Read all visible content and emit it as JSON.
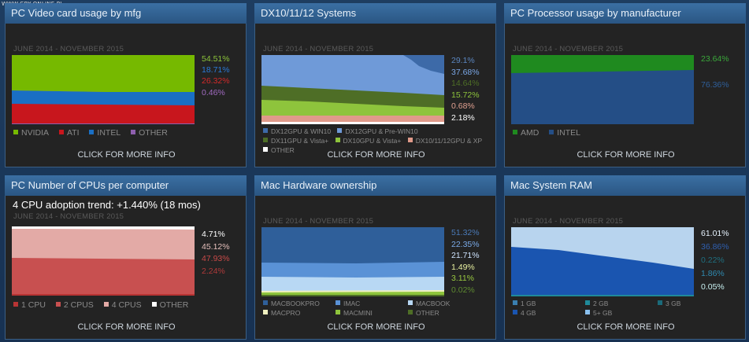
{
  "watermark": "WWW.GRY-ONLINE.PL",
  "panels": [
    {
      "title": "PC Video card usage by mfg",
      "date": "JUNE 2014 - NOVEMBER 2015",
      "cta": "CLICK FOR MORE INFO",
      "values": [
        {
          "text": "54.51%",
          "color": "#8cc43a"
        },
        {
          "text": "18.71%",
          "color": "#2b7ad6"
        },
        {
          "text": "26.32%",
          "color": "#d22a2a"
        },
        {
          "text": "0.46%",
          "color": "#a06ac0"
        }
      ],
      "legend": [
        {
          "label": "NVIDIA",
          "color": "#76b900"
        },
        {
          "label": "ATI",
          "color": "#c8161d"
        },
        {
          "label": "INTEL",
          "color": "#1a6fc4"
        },
        {
          "label": "OTHER",
          "color": "#8e5fae"
        }
      ]
    },
    {
      "title": "DX10/11/12 Systems",
      "date": "JUNE 2014 - NOVEMBER 2015",
      "cta": "CLICK FOR MORE INFO",
      "values": [
        {
          "text": "29.1%",
          "color": "#5b86c0"
        },
        {
          "text": "37.68%",
          "color": "#7aa6e6"
        },
        {
          "text": "14.64%",
          "color": "#4e6e26"
        },
        {
          "text": "15.72%",
          "color": "#8ec43c"
        },
        {
          "text": "0.68%",
          "color": "#e0a090"
        },
        {
          "text": "2.18%",
          "color": "#ffffff"
        }
      ],
      "legend": [
        {
          "label": "DX12GPU & WIN10",
          "color": "#3d6aa8"
        },
        {
          "label": "DX12GPU & Pre-WIN10",
          "color": "#6f9ad8"
        },
        {
          "label": "DX11GPU & Vista+",
          "color": "#4e6e26"
        },
        {
          "label": "DX10GPU & Vista+",
          "color": "#8ec43c"
        },
        {
          "label": "DX10/11/12GPU & XP",
          "color": "#e09a8a"
        },
        {
          "label": "OTHER",
          "color": "#ffffff"
        }
      ]
    },
    {
      "title": "PC Processor usage by manufacturer",
      "date": "JUNE 2014 - NOVEMBER 2015",
      "cta": "CLICK FOR MORE INFO",
      "values": [
        {
          "text": "23.64%",
          "color": "#3aa83a"
        },
        {
          "text": "76.36%",
          "color": "#2f5f9a"
        }
      ],
      "legend": [
        {
          "label": "AMD",
          "color": "#1f8a1f"
        },
        {
          "label": "INTEL",
          "color": "#244e86"
        }
      ]
    },
    {
      "title": "PC Number of CPUs per computer",
      "trend": "4 CPU adoption trend: +1.440% (18 mos)",
      "date": "JUNE 2014 - NOVEMBER 2015",
      "cta": "CLICK FOR MORE INFO",
      "values": [
        {
          "text": "4.71%",
          "color": "#ffffff"
        },
        {
          "text": "45.12%",
          "color": "#e6c0bc"
        },
        {
          "text": "47.93%",
          "color": "#c84a48"
        },
        {
          "text": "2.24%",
          "color": "#b03a3a"
        }
      ],
      "legend": [
        {
          "label": "1 CPU",
          "color": "#b83434"
        },
        {
          "label": "2 CPUS",
          "color": "#c85050"
        },
        {
          "label": "4 CPUS",
          "color": "#e3aaa6"
        },
        {
          "label": "OTHER",
          "color": "#ffffff"
        }
      ]
    },
    {
      "title": "Mac Hardware ownership",
      "date": "JUNE 2014 - NOVEMBER 2015",
      "cta": "CLICK FOR MORE INFO",
      "values": [
        {
          "text": "51.32%",
          "color": "#4a7ab8"
        },
        {
          "text": "22.35%",
          "color": "#7aaae8"
        },
        {
          "text": "21.71%",
          "color": "#cfe4ff"
        },
        {
          "text": "1.49%",
          "color": "#e8f0a0"
        },
        {
          "text": "3.11%",
          "color": "#98c840"
        },
        {
          "text": "0.02%",
          "color": "#5e8a30"
        }
      ],
      "legend": [
        {
          "label": "MACBOOKPRO",
          "color": "#2f5f9a"
        },
        {
          "label": "IMAC",
          "color": "#5a92d6"
        },
        {
          "label": "MACBOOK",
          "color": "#b8d8f4"
        },
        {
          "label": "MACPRO",
          "color": "#f0f0c0"
        },
        {
          "label": "MACMINI",
          "color": "#8ec43c"
        },
        {
          "label": "OTHER",
          "color": "#4e6e26"
        }
      ]
    },
    {
      "title": "Mac System RAM",
      "date": "JUNE 2014 - NOVEMBER 2015",
      "cta": "CLICK FOR MORE INFO",
      "values": [
        {
          "text": "61.01%",
          "color": "#e8f4ff"
        },
        {
          "text": "36.86%",
          "color": "#2f5fb0"
        },
        {
          "text": "0.22%",
          "color": "#1f6f7f"
        },
        {
          "text": "1.86%",
          "color": "#2f8ab0"
        },
        {
          "text": "0.05%",
          "color": "#c8f0f0"
        }
      ],
      "legend": [
        {
          "label": "1 GB",
          "color": "#3a7fb0"
        },
        {
          "label": "2 GB",
          "color": "#1f8a9a"
        },
        {
          "label": "3 GB",
          "color": "#1a6a7a"
        },
        {
          "label": "4 GB",
          "color": "#1a55b0"
        },
        {
          "label": "5+ GB",
          "color": "#8ac0ee"
        }
      ]
    }
  ]
}
